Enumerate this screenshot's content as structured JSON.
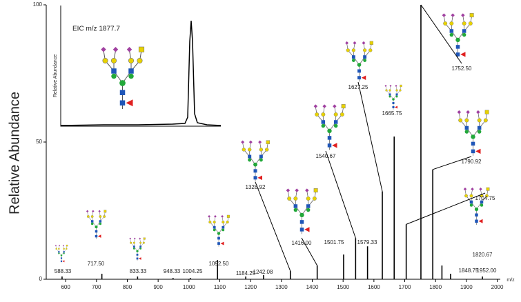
{
  "chart_data": {
    "type": "stem",
    "y_label": "Relative Abundance",
    "x_label": "m/z",
    "inset_title": "EIC m/z 1877.7",
    "inset_y_label": "Relative Abundance",
    "xlim": [
      537,
      2010
    ],
    "ylim": [
      0,
      100
    ],
    "xticks": [
      600,
      700,
      800,
      900,
      1000,
      1100,
      1200,
      1300,
      1400,
      1500,
      1600,
      1700,
      1800,
      1900,
      2000
    ],
    "yticks": [
      0,
      50,
      100
    ],
    "color": "#000000",
    "x": [
      588.33,
      717.5,
      833.33,
      948.33,
      1004.25,
      1092.5,
      1184.25,
      1242.08,
      1328.92,
      1416,
      1501.75,
      1540.67,
      1579.33,
      1627.25,
      1665.75,
      1704.75,
      1752.5,
      1790.92,
      1820.67,
      1848.75,
      1952
    ],
    "x_labels": [
      "588.33",
      "717.50",
      "833.33",
      "948.33",
      "1004.25",
      "1092.50",
      "1184.25",
      "1242.08",
      "1328.92",
      "1416.00",
      "1501.75",
      "1540.67",
      "1579.33",
      "1627.25",
      "1665.75",
      "1704.75",
      "1752.50",
      "1790.92",
      "1820.67",
      "1848.75",
      "1952.00"
    ],
    "values": [
      1,
      2,
      1,
      0.5,
      0.5,
      7,
      1,
      1.5,
      3,
      5,
      9,
      15,
      12,
      32,
      52,
      20,
      100,
      40,
      5,
      2,
      1
    ]
  }
}
